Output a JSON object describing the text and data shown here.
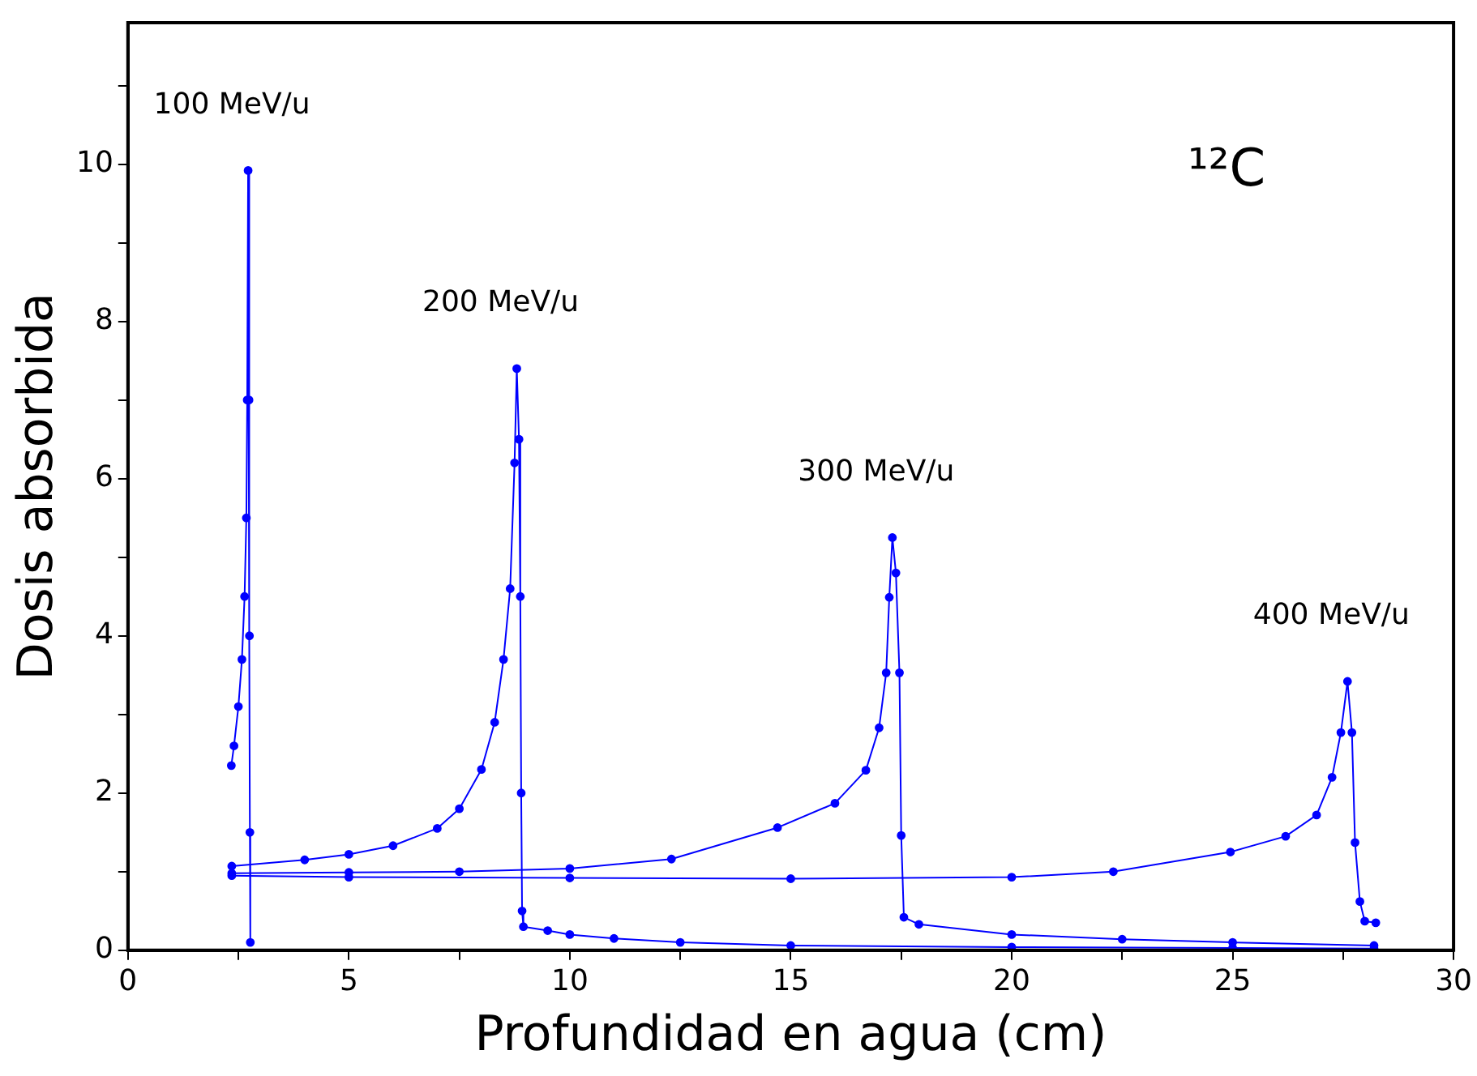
{
  "chart_data": {
    "type": "line",
    "xlabel": "Profundidad en agua (cm)",
    "ylabel": "Dosis absorbida",
    "xlim": [
      0,
      30
    ],
    "xticks": [
      0,
      {
        "value": 2.5,
        "label": null
      },
      5,
      {
        "value": 7.5,
        "label": null
      },
      10,
      {
        "value": 12.5,
        "label": null
      },
      15,
      {
        "value": 17.5,
        "label": null
      },
      20,
      {
        "value": 22.5,
        "label": null
      },
      25,
      {
        "value": 27.5,
        "label": null
      },
      30
    ],
    "ylim": [
      0,
      11.8
    ],
    "yticks": [
      0,
      {
        "value": 1,
        "label": null
      },
      2,
      {
        "value": 3,
        "label": null
      },
      4,
      {
        "value": 5,
        "label": null
      },
      6,
      {
        "value": 7,
        "label": null
      },
      8,
      {
        "value": 9,
        "label": null
      },
      10,
      {
        "value": 11,
        "label": null
      }
    ],
    "grid": false,
    "legend": false,
    "marker": "circle",
    "line_style": "solid",
    "series": [
      {
        "name": "100 MeV/u",
        "color": "#0000ff",
        "x": [
          2.34,
          2.4,
          2.5,
          2.58,
          2.64,
          2.68,
          2.7,
          2.72,
          2.74,
          2.75,
          2.76,
          2.77
        ],
        "values": [
          2.35,
          2.6,
          3.1,
          3.7,
          4.5,
          5.5,
          7,
          9.92,
          7,
          4,
          1.5,
          0.1
        ]
      },
      {
        "name": "200 MeV/u",
        "color": "#0000ff",
        "x": [
          2.35,
          4,
          5,
          6,
          7,
          7.5,
          8,
          8.3,
          8.5,
          8.65,
          8.75,
          8.8,
          8.85,
          8.88,
          8.9,
          8.92,
          8.95,
          9.5,
          10,
          11,
          12.5,
          15,
          20,
          25,
          28.2
        ],
        "values": [
          1.07,
          1.15,
          1.22,
          1.33,
          1.55,
          1.8,
          2.3,
          2.9,
          3.7,
          4.6,
          6.2,
          7.4,
          6.5,
          4.5,
          2,
          0.5,
          0.3,
          0.25,
          0.2,
          0.15,
          0.1,
          0.06,
          0.04,
          0.03,
          0.02
        ]
      },
      {
        "name": "300 MeV/u",
        "color": "#0000ff",
        "x": [
          2.35,
          5,
          7.5,
          10,
          12.3,
          14.7,
          16,
          16.7,
          17,
          17.16,
          17.23,
          17.3,
          17.38,
          17.46,
          17.5,
          17.56,
          17.9,
          20,
          22.5,
          25,
          28.2
        ],
        "values": [
          0.98,
          0.99,
          1.0,
          1.04,
          1.16,
          1.56,
          1.87,
          2.29,
          2.83,
          3.53,
          4.49,
          5.25,
          4.8,
          3.53,
          1.46,
          0.42,
          0.33,
          0.2,
          0.14,
          0.1,
          0.06
        ]
      },
      {
        "name": "400 MeV/u",
        "color": "#0000ff",
        "x": [
          2.35,
          5,
          10,
          15,
          20,
          22.3,
          24.95,
          26.2,
          26.9,
          27.25,
          27.45,
          27.6,
          27.7,
          27.77,
          27.88,
          27.99,
          28.24
        ],
        "values": [
          0.95,
          0.93,
          0.92,
          0.91,
          0.93,
          1.0,
          1.25,
          1.45,
          1.72,
          2.2,
          2.77,
          3.42,
          2.77,
          1.37,
          0.62,
          0.37,
          0.35
        ]
      }
    ],
    "annotations": [
      "¹²C"
    ]
  }
}
